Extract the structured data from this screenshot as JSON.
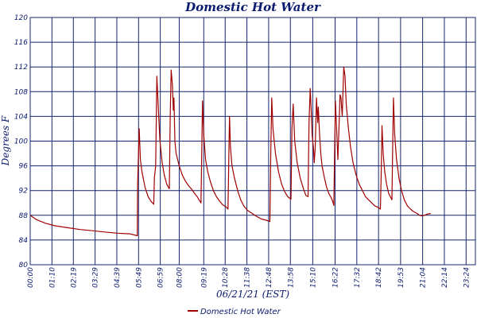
{
  "colors": {
    "text": "#0a1a6e",
    "grid": "#16246e",
    "series": "#a00000",
    "background": "#ffffff"
  },
  "chart_data": {
    "type": "line",
    "title": "Domestic Hot Water",
    "xlabel": "06/21/21 (EST)",
    "ylabel": "Degrees F",
    "grid": true,
    "legend_position": "bottom-center",
    "xlim": [
      0,
      1434
    ],
    "ylim": [
      80,
      120
    ],
    "y_ticks": [
      80,
      84,
      88,
      92,
      96,
      100,
      104,
      108,
      112,
      116,
      120
    ],
    "x_ticks": [
      {
        "t": 0,
        "label": "00:00"
      },
      {
        "t": 70,
        "label": "01:10"
      },
      {
        "t": 139,
        "label": "02:19"
      },
      {
        "t": 209,
        "label": "03:29"
      },
      {
        "t": 279,
        "label": "04:39"
      },
      {
        "t": 349,
        "label": "05:49"
      },
      {
        "t": 419,
        "label": "06:59"
      },
      {
        "t": 480,
        "label": "08:00"
      },
      {
        "t": 559,
        "label": "09:19"
      },
      {
        "t": 628,
        "label": "10:28"
      },
      {
        "t": 698,
        "label": "11:38"
      },
      {
        "t": 768,
        "label": "12:48"
      },
      {
        "t": 838,
        "label": "13:58"
      },
      {
        "t": 910,
        "label": "15:10"
      },
      {
        "t": 982,
        "label": "16:22"
      },
      {
        "t": 1052,
        "label": "17:32"
      },
      {
        "t": 1122,
        "label": "18:42"
      },
      {
        "t": 1193,
        "label": "19:53"
      },
      {
        "t": 1264,
        "label": "21:04"
      },
      {
        "t": 1334,
        "label": "22:14"
      },
      {
        "t": 1404,
        "label": "23:24"
      }
    ],
    "series": [
      {
        "name": "Domestic Hot Water",
        "points": [
          [
            0,
            88.0
          ],
          [
            20,
            87.3
          ],
          [
            50,
            86.7
          ],
          [
            80,
            86.3
          ],
          [
            120,
            86.0
          ],
          [
            160,
            85.7
          ],
          [
            200,
            85.5
          ],
          [
            240,
            85.3
          ],
          [
            280,
            85.1
          ],
          [
            320,
            85.0
          ],
          [
            345,
            84.7
          ],
          [
            346,
            93.0
          ],
          [
            351,
            102.0
          ],
          [
            355,
            97.0
          ],
          [
            360,
            95.0
          ],
          [
            370,
            92.5
          ],
          [
            380,
            91.0
          ],
          [
            390,
            90.2
          ],
          [
            398,
            89.8
          ],
          [
            400,
            94.0
          ],
          [
            404,
            96.0
          ],
          [
            408,
            110.5
          ],
          [
            413,
            105.0
          ],
          [
            418,
            100.0
          ],
          [
            425,
            96.5
          ],
          [
            432,
            94.5
          ],
          [
            440,
            93.0
          ],
          [
            448,
            92.3
          ],
          [
            451,
            104.0
          ],
          [
            454,
            111.5
          ],
          [
            458,
            109.0
          ],
          [
            461,
            105.0
          ],
          [
            463,
            107.0
          ],
          [
            466,
            100.0
          ],
          [
            470,
            98.0
          ],
          [
            480,
            96.0
          ],
          [
            490,
            94.5
          ],
          [
            500,
            93.5
          ],
          [
            510,
            92.8
          ],
          [
            520,
            92.2
          ],
          [
            530,
            91.5
          ],
          [
            538,
            91.0
          ],
          [
            544,
            90.5
          ],
          [
            550,
            90.0
          ],
          [
            553,
            100.0
          ],
          [
            555,
            106.5
          ],
          [
            559,
            101.0
          ],
          [
            565,
            97.0
          ],
          [
            572,
            95.0
          ],
          [
            580,
            93.5
          ],
          [
            590,
            92.0
          ],
          [
            600,
            91.0
          ],
          [
            610,
            90.3
          ],
          [
            620,
            89.7
          ],
          [
            630,
            89.4
          ],
          [
            637,
            89.0
          ],
          [
            640,
            98.0
          ],
          [
            642,
            104.0
          ],
          [
            645,
            99.0
          ],
          [
            650,
            96.0
          ],
          [
            658,
            94.0
          ],
          [
            668,
            92.0
          ],
          [
            678,
            90.5
          ],
          [
            688,
            89.5
          ],
          [
            700,
            88.8
          ],
          [
            715,
            88.3
          ],
          [
            730,
            87.8
          ],
          [
            745,
            87.4
          ],
          [
            760,
            87.2
          ],
          [
            772,
            87.0
          ],
          [
            775,
            98.0
          ],
          [
            778,
            107.0
          ],
          [
            782,
            102.0
          ],
          [
            790,
            98.0
          ],
          [
            800,
            95.0
          ],
          [
            810,
            93.0
          ],
          [
            820,
            91.8
          ],
          [
            830,
            91.0
          ],
          [
            840,
            90.6
          ],
          [
            843,
            102.0
          ],
          [
            847,
            106.0
          ],
          [
            852,
            100.0
          ],
          [
            860,
            96.5
          ],
          [
            870,
            94.0
          ],
          [
            880,
            92.3
          ],
          [
            888,
            91.2
          ],
          [
            895,
            91.0
          ],
          [
            898,
            103.0
          ],
          [
            902,
            108.5
          ],
          [
            906,
            104.0
          ],
          [
            908,
            101.0
          ],
          [
            912,
            99.0
          ],
          [
            915,
            96.5
          ],
          [
            918,
            99.0
          ],
          [
            922,
            107.0
          ],
          [
            926,
            103.0
          ],
          [
            928,
            105.5
          ],
          [
            932,
            101.0
          ],
          [
            936,
            98.0
          ],
          [
            940,
            96.0
          ],
          [
            948,
            94.0
          ],
          [
            955,
            92.5
          ],
          [
            962,
            91.5
          ],
          [
            968,
            91.0
          ],
          [
            974,
            90.3
          ],
          [
            978,
            89.6
          ],
          [
            981,
            100.0
          ],
          [
            983,
            106.5
          ],
          [
            987,
            102.0
          ],
          [
            991,
            97.0
          ],
          [
            995,
            103.0
          ],
          [
            998,
            107.5
          ],
          [
            1001,
            107.0
          ],
          [
            1005,
            104.0
          ],
          [
            1010,
            112.0
          ],
          [
            1014,
            110.5
          ],
          [
            1018,
            106.0
          ],
          [
            1025,
            102.0
          ],
          [
            1032,
            99.0
          ],
          [
            1040,
            96.5
          ],
          [
            1050,
            94.5
          ],
          [
            1060,
            93.0
          ],
          [
            1070,
            92.0
          ],
          [
            1080,
            91.0
          ],
          [
            1090,
            90.5
          ],
          [
            1100,
            90.0
          ],
          [
            1110,
            89.5
          ],
          [
            1120,
            89.3
          ],
          [
            1128,
            89.0
          ],
          [
            1131,
            96.0
          ],
          [
            1133,
            102.5
          ],
          [
            1137,
            98.0
          ],
          [
            1142,
            95.0
          ],
          [
            1148,
            93.0
          ],
          [
            1155,
            91.5
          ],
          [
            1162,
            90.8
          ],
          [
            1165,
            90.5
          ],
          [
            1167,
            97.0
          ],
          [
            1170,
            107.0
          ],
          [
            1174,
            101.0
          ],
          [
            1180,
            97.0
          ],
          [
            1188,
            94.0
          ],
          [
            1196,
            92.0
          ],
          [
            1205,
            90.5
          ],
          [
            1215,
            89.5
          ],
          [
            1225,
            89.0
          ],
          [
            1232,
            88.7
          ],
          [
            1238,
            88.5
          ],
          [
            1246,
            88.3
          ],
          [
            1254,
            88.0
          ],
          [
            1262,
            87.9
          ],
          [
            1270,
            88.0
          ],
          [
            1280,
            88.2
          ],
          [
            1290,
            88.3
          ]
        ]
      }
    ]
  }
}
